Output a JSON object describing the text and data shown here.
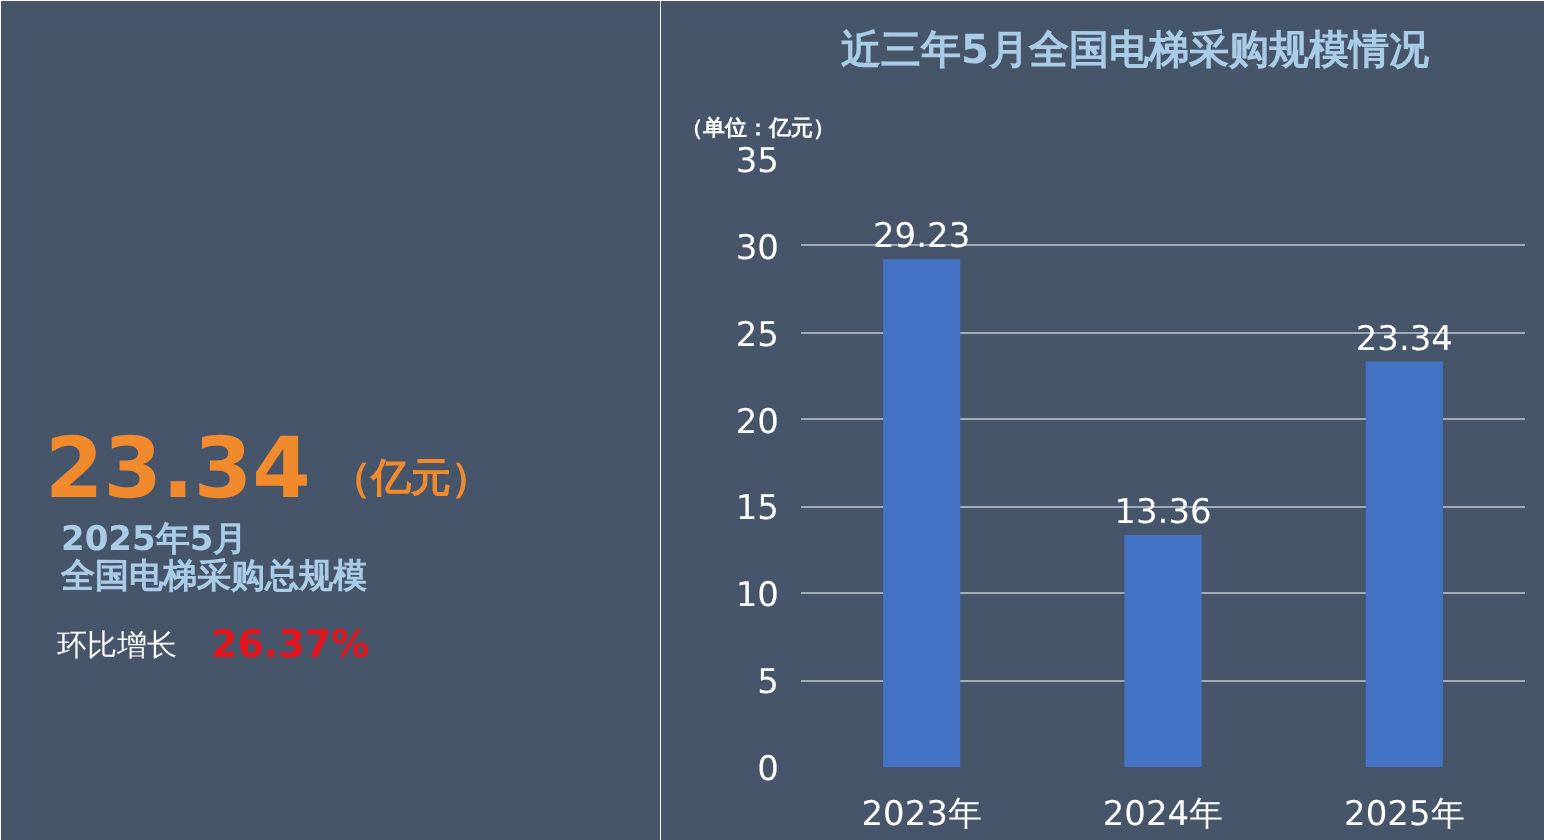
{
  "chart_data": {
    "type": "bar",
    "title": "近三年5月全国电梯采购规模情况",
    "ylabel": "（单位：亿元）",
    "categories": [
      "2023年",
      "2024年",
      "2025年"
    ],
    "values": [
      29.23,
      13.36,
      23.34
    ],
    "color": "#4472c4",
    "ylim": [
      0,
      35
    ],
    "yticks": [
      0,
      5,
      10,
      15,
      20,
      25,
      30,
      35
    ],
    "grid": "y",
    "data_labels": true,
    "annotations": [
      "23.34",
      "（亿元）",
      "2025年5月",
      "全国电梯采购总规模",
      "环比增长",
      "26.37%"
    ]
  }
}
